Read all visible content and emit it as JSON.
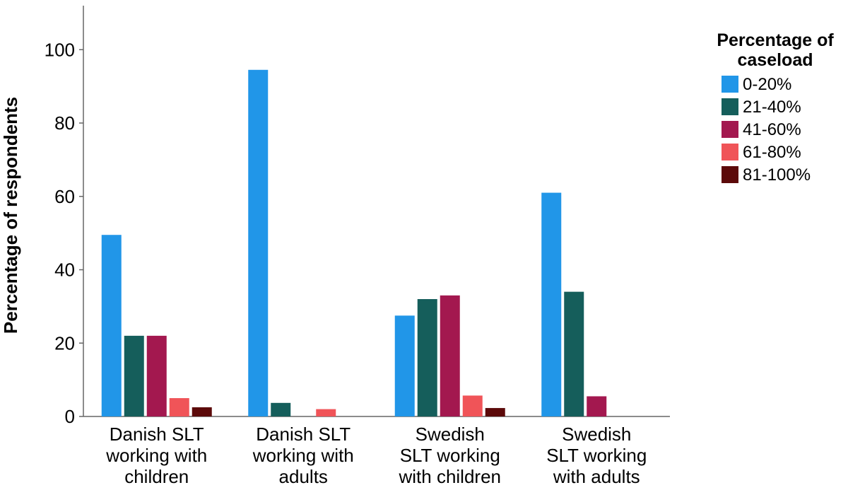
{
  "chart_data": {
    "type": "bar",
    "ylabel": "Percentage of respondents",
    "xlabel": "",
    "ylim": [
      0,
      112
    ],
    "yticks": [
      0,
      20,
      40,
      60,
      80,
      100
    ],
    "categories": [
      [
        "Danish SLT",
        "working with",
        "children"
      ],
      [
        "Danish SLT",
        "working with",
        "adults"
      ],
      [
        "Swedish",
        "SLT working",
        "with children"
      ],
      [
        "Swedish",
        "SLT working",
        "with adults"
      ]
    ],
    "legend": {
      "title_lines": [
        "Percentage of",
        "caseload"
      ],
      "placement": "right"
    },
    "series": [
      {
        "name": "0-20%",
        "color": "#2196e8",
        "values": [
          49.5,
          94.5,
          27.5,
          61
        ]
      },
      {
        "name": "21-40%",
        "color": "#155e5b",
        "values": [
          22,
          3.7,
          32,
          34
        ]
      },
      {
        "name": "41-60%",
        "color": "#a3184f",
        "values": [
          22,
          0,
          33,
          5.5
        ]
      },
      {
        "name": "61-80%",
        "color": "#f05458",
        "values": [
          5,
          2,
          5.7,
          0
        ]
      },
      {
        "name": "81-100%",
        "color": "#5c0a0a",
        "values": [
          2.5,
          0,
          2.3,
          0
        ]
      }
    ],
    "grid": false
  }
}
